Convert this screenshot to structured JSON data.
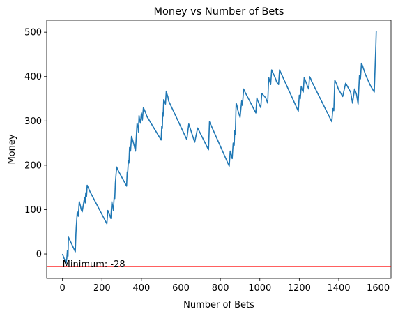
{
  "chart_data": {
    "type": "line",
    "title": "Money vs Number of Bets",
    "xlabel": "Number of Bets",
    "ylabel": "Money",
    "xlim": [
      -80,
      1665
    ],
    "ylim": [
      -55,
      527
    ],
    "xticks": [
      0,
      200,
      400,
      600,
      800,
      1000,
      1200,
      1400,
      1600
    ],
    "yticks": [
      0,
      100,
      200,
      300,
      400,
      500
    ],
    "grid": false,
    "series": [
      {
        "color": "#1f77b4",
        "x": [
          0,
          18,
          22,
          25,
          28,
          30,
          65,
          68,
          70,
          72,
          75,
          80,
          85,
          90,
          95,
          100,
          112,
          115,
          118,
          122,
          125,
          130,
          135,
          140,
          225,
          230,
          235,
          240,
          245,
          250,
          258,
          262,
          265,
          268,
          272,
          275,
          280,
          325,
          328,
          330,
          334,
          337,
          340,
          345,
          350,
          355,
          360,
          370,
          378,
          383,
          385,
          388,
          392,
          395,
          400,
          405,
          410,
          420,
          428,
          500,
          503,
          506,
          508,
          510,
          513,
          518,
          522,
          526,
          530,
          534,
          538,
          630,
          640,
          670,
          685,
          740,
          745,
          845,
          850,
          860,
          865,
          870,
          873,
          876,
          880,
          884,
          888,
          900,
          908,
          912,
          918,
          925,
          980,
          985,
          990,
          1005,
          1010,
          1030,
          1040,
          1045,
          1050,
          1055,
          1060,
          1070,
          1080,
          1085,
          1095,
          1100,
          1105,
          1195,
          1200,
          1205,
          1210,
          1215,
          1220,
          1225,
          1230,
          1240,
          1248,
          1252,
          1258,
          1262,
          1365,
          1370,
          1375,
          1380,
          1390,
          1398,
          1420,
          1435,
          1460,
          1470,
          1480,
          1490,
          1498,
          1505,
          1510,
          1515,
          1520,
          1535,
          1545,
          1560,
          1580,
          1585,
          1588,
          1590
        ],
        "y": [
          0,
          -22,
          -10,
          8,
          -5,
          38,
          5,
          45,
          62,
          75,
          95,
          85,
          118,
          110,
          100,
          95,
          128,
          115,
          138,
          130,
          155,
          150,
          145,
          140,
          68,
          98,
          92,
          87,
          80,
          118,
          98,
          130,
          125,
          160,
          182,
          196,
          190,
          153,
          185,
          180,
          210,
          205,
          240,
          232,
          265,
          258,
          250,
          232,
          295,
          285,
          275,
          312,
          300,
          295,
          318,
          302,
          330,
          320,
          310,
          257,
          288,
          283,
          318,
          310,
          348,
          342,
          338,
          367,
          360,
          355,
          345,
          258,
          293,
          252,
          284,
          235,
          298,
          198,
          232,
          215,
          250,
          245,
          278,
          270,
          340,
          335,
          325,
          308,
          345,
          335,
          372,
          365,
          318,
          352,
          345,
          330,
          362,
          352,
          340,
          398,
          390,
          382,
          415,
          405,
          395,
          388,
          382,
          415,
          410,
          322,
          358,
          350,
          378,
          370,
          365,
          398,
          392,
          380,
          372,
          400,
          395,
          390,
          298,
          328,
          323,
          392,
          382,
          372,
          355,
          385,
          365,
          340,
          372,
          360,
          338,
          403,
          395,
          430,
          425,
          405,
          395,
          380,
          365,
          432,
          470,
          502
        ]
      }
    ],
    "hlines": [
      {
        "y": -28,
        "color": "#ff0000"
      }
    ],
    "annotations": [
      {
        "text": "Minimum: -28",
        "x": 0,
        "y": -28
      }
    ]
  }
}
